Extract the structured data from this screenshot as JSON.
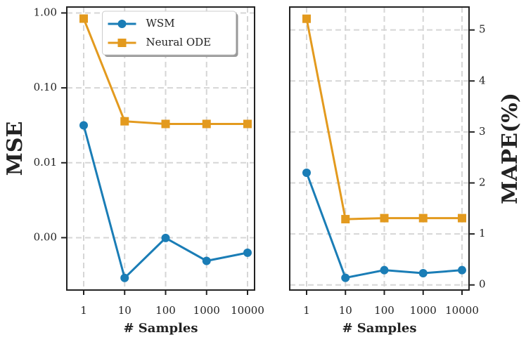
{
  "chart_data": [
    {
      "type": "line",
      "ylabel": "MSE",
      "xlabel": "# Samples",
      "categories": [
        "1",
        "10",
        "100",
        "1000",
        "10000"
      ],
      "series": [
        {
          "name": "WSM",
          "color": "#1a7db6",
          "marker": "circle",
          "values": [
            0.0316,
            0.00029,
            0.00099,
            0.00049,
            0.00063
          ]
        },
        {
          "name": "Neural ODE",
          "color": "#e39a1e",
          "marker": "square",
          "values": [
            0.84,
            0.0358,
            0.033,
            0.033,
            0.033
          ]
        }
      ],
      "ylog": true,
      "ylim": [
        0.0002,
        1.2
      ],
      "yticks": [
        {
          "value": 1,
          "label": "1.00"
        },
        {
          "value": 0.1,
          "label": "0.10"
        },
        {
          "value": 0.01,
          "label": "0.01"
        },
        {
          "value": 0.001,
          "label": "0.00"
        }
      ],
      "grid": true,
      "legend": "upper center",
      "y_axis_side": "left"
    },
    {
      "type": "line",
      "ylabel": "MAPE(%)",
      "xlabel": "# Samples",
      "categories": [
        "1",
        "10",
        "100",
        "1000",
        "10000"
      ],
      "series": [
        {
          "name": "WSM",
          "color": "#1a7db6",
          "marker": "circle",
          "values": [
            2.2,
            0.14,
            0.29,
            0.23,
            0.29
          ]
        },
        {
          "name": "Neural ODE",
          "color": "#e39a1e",
          "marker": "square",
          "values": [
            5.22,
            1.29,
            1.31,
            1.31,
            1.31
          ]
        }
      ],
      "ylog": false,
      "ylim": [
        -0.1,
        5.45
      ],
      "yticks": [
        0,
        1,
        2,
        3,
        4,
        5
      ],
      "grid": true,
      "y_axis_side": "right"
    }
  ]
}
